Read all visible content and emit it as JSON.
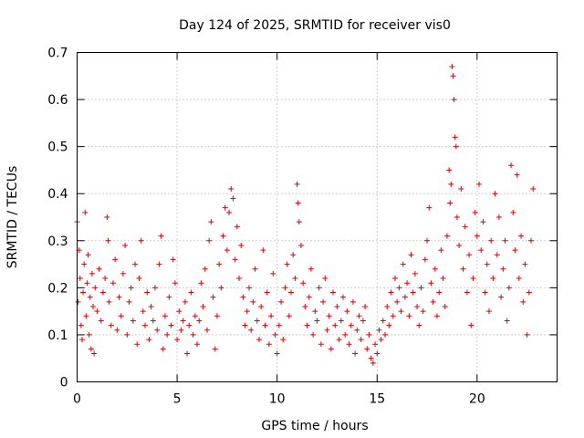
{
  "chart_data": {
    "type": "scatter",
    "title": "Day 124 of 2025, SRMTID for receiver vis0",
    "xlabel": "GPS time / hours",
    "ylabel": "SRMTID / TECUs",
    "xlim": [
      0,
      24
    ],
    "ylim": [
      0,
      0.7
    ],
    "xticks": [
      0,
      5,
      10,
      15,
      20
    ],
    "xtick_labels": [
      "0",
      "5",
      "10",
      "15",
      "20"
    ],
    "yticks": [
      0,
      0.1,
      0.2,
      0.3,
      0.4,
      0.5,
      0.6,
      0.7
    ],
    "ytick_labels": [
      "0",
      "0.1",
      "0.2",
      "0.3",
      "0.4",
      "0.5",
      "0.6",
      "0.7"
    ],
    "grid": true,
    "marker": "+",
    "color": "#e00000",
    "series": [
      {
        "name": "SRMTID",
        "points": [
          [
            0.0,
            0.34
          ],
          [
            0.05,
            0.17
          ],
          [
            0.1,
            0.28
          ],
          [
            0.15,
            0.22
          ],
          [
            0.2,
            0.12
          ],
          [
            0.25,
            0.09
          ],
          [
            0.3,
            0.19
          ],
          [
            0.35,
            0.25
          ],
          [
            0.4,
            0.36
          ],
          [
            0.45,
            0.14
          ],
          [
            0.5,
            0.21
          ],
          [
            0.55,
            0.27
          ],
          [
            0.6,
            0.1
          ],
          [
            0.65,
            0.18
          ],
          [
            0.7,
            0.07
          ],
          [
            0.75,
            0.23
          ],
          [
            0.8,
            0.16
          ],
          [
            0.85,
            0.06
          ],
          [
            0.9,
            0.2
          ],
          [
            1.0,
            0.15
          ],
          [
            1.1,
            0.24
          ],
          [
            1.2,
            0.13
          ],
          [
            1.3,
            0.19
          ],
          [
            1.4,
            0.22
          ],
          [
            1.5,
            0.35
          ],
          [
            1.55,
            0.3
          ],
          [
            1.6,
            0.17
          ],
          [
            1.7,
            0.12
          ],
          [
            1.8,
            0.21
          ],
          [
            1.9,
            0.26
          ],
          [
            2.0,
            0.11
          ],
          [
            2.1,
            0.18
          ],
          [
            2.2,
            0.14
          ],
          [
            2.3,
            0.23
          ],
          [
            2.4,
            0.29
          ],
          [
            2.5,
            0.1
          ],
          [
            2.6,
            0.17
          ],
          [
            2.7,
            0.2
          ],
          [
            2.8,
            0.13
          ],
          [
            2.9,
            0.25
          ],
          [
            3.0,
            0.08
          ],
          [
            3.1,
            0.22
          ],
          [
            3.2,
            0.3
          ],
          [
            3.3,
            0.15
          ],
          [
            3.4,
            0.12
          ],
          [
            3.5,
            0.19
          ],
          [
            3.6,
            0.09
          ],
          [
            3.7,
            0.16
          ],
          [
            3.8,
            0.13
          ],
          [
            3.9,
            0.2
          ],
          [
            4.0,
            0.11
          ],
          [
            4.1,
            0.25
          ],
          [
            4.2,
            0.31
          ],
          [
            4.3,
            0.07
          ],
          [
            4.4,
            0.14
          ],
          [
            4.5,
            0.1
          ],
          [
            4.6,
            0.18
          ],
          [
            4.7,
            0.12
          ],
          [
            4.8,
            0.26
          ],
          [
            4.9,
            0.21
          ],
          [
            5.0,
            0.09
          ],
          [
            5.1,
            0.15
          ],
          [
            5.2,
            0.11
          ],
          [
            5.3,
            0.13
          ],
          [
            5.4,
            0.17
          ],
          [
            5.5,
            0.06
          ],
          [
            5.6,
            0.12
          ],
          [
            5.7,
            0.19
          ],
          [
            5.8,
            0.1
          ],
          [
            5.9,
            0.14
          ],
          [
            6.0,
            0.08
          ],
          [
            6.1,
            0.13
          ],
          [
            6.2,
            0.21
          ],
          [
            6.3,
            0.16
          ],
          [
            6.4,
            0.24
          ],
          [
            6.5,
            0.11
          ],
          [
            6.6,
            0.3
          ],
          [
            6.7,
            0.34
          ],
          [
            6.8,
            0.18
          ],
          [
            6.9,
            0.07
          ],
          [
            7.0,
            0.14
          ],
          [
            7.1,
            0.25
          ],
          [
            7.2,
            0.2
          ],
          [
            7.3,
            0.31
          ],
          [
            7.4,
            0.37
          ],
          [
            7.5,
            0.28
          ],
          [
            7.6,
            0.36
          ],
          [
            7.7,
            0.41
          ],
          [
            7.8,
            0.39
          ],
          [
            7.9,
            0.26
          ],
          [
            8.0,
            0.33
          ],
          [
            8.1,
            0.22
          ],
          [
            8.2,
            0.29
          ],
          [
            8.3,
            0.18
          ],
          [
            8.4,
            0.12
          ],
          [
            8.5,
            0.15
          ],
          [
            8.6,
            0.2
          ],
          [
            8.7,
            0.11
          ],
          [
            8.8,
            0.17
          ],
          [
            8.9,
            0.24
          ],
          [
            9.0,
            0.13
          ],
          [
            9.1,
            0.09
          ],
          [
            9.2,
            0.16
          ],
          [
            9.3,
            0.28
          ],
          [
            9.4,
            0.12
          ],
          [
            9.5,
            0.19
          ],
          [
            9.6,
            0.08
          ],
          [
            9.7,
            0.14
          ],
          [
            9.8,
            0.23
          ],
          [
            9.9,
            0.1
          ],
          [
            10.0,
            0.06
          ],
          [
            10.1,
            0.12
          ],
          [
            10.2,
            0.17
          ],
          [
            10.3,
            0.09
          ],
          [
            10.4,
            0.2
          ],
          [
            10.5,
            0.25
          ],
          [
            10.6,
            0.14
          ],
          [
            10.7,
            0.19
          ],
          [
            10.8,
            0.27
          ],
          [
            10.9,
            0.22
          ],
          [
            11.0,
            0.42
          ],
          [
            11.05,
            0.38
          ],
          [
            11.1,
            0.34
          ],
          [
            11.2,
            0.29
          ],
          [
            11.3,
            0.21
          ],
          [
            11.4,
            0.16
          ],
          [
            11.5,
            0.12
          ],
          [
            11.6,
            0.18
          ],
          [
            11.7,
            0.24
          ],
          [
            11.8,
            0.1
          ],
          [
            11.9,
            0.15
          ],
          [
            12.0,
            0.13
          ],
          [
            12.1,
            0.2
          ],
          [
            12.2,
            0.08
          ],
          [
            12.3,
            0.17
          ],
          [
            12.4,
            0.22
          ],
          [
            12.5,
            0.11
          ],
          [
            12.6,
            0.14
          ],
          [
            12.7,
            0.07
          ],
          [
            12.8,
            0.19
          ],
          [
            12.9,
            0.12
          ],
          [
            13.0,
            0.16
          ],
          [
            13.1,
            0.09
          ],
          [
            13.2,
            0.13
          ],
          [
            13.3,
            0.18
          ],
          [
            13.4,
            0.1
          ],
          [
            13.5,
            0.15
          ],
          [
            13.6,
            0.08
          ],
          [
            13.7,
            0.12
          ],
          [
            13.8,
            0.17
          ],
          [
            13.9,
            0.06
          ],
          [
            14.0,
            0.11
          ],
          [
            14.1,
            0.14
          ],
          [
            14.2,
            0.09
          ],
          [
            14.3,
            0.13
          ],
          [
            14.4,
            0.16
          ],
          [
            14.5,
            0.07
          ],
          [
            14.6,
            0.1
          ],
          [
            14.7,
            0.05
          ],
          [
            14.8,
            0.04
          ],
          [
            14.9,
            0.08
          ],
          [
            15.0,
            0.06
          ],
          [
            15.1,
            0.11
          ],
          [
            15.2,
            0.09
          ],
          [
            15.3,
            0.13
          ],
          [
            15.4,
            0.1
          ],
          [
            15.5,
            0.16
          ],
          [
            15.6,
            0.12
          ],
          [
            15.7,
            0.19
          ],
          [
            15.8,
            0.14
          ],
          [
            15.9,
            0.22
          ],
          [
            16.0,
            0.17
          ],
          [
            16.1,
            0.2
          ],
          [
            16.2,
            0.15
          ],
          [
            16.3,
            0.25
          ],
          [
            16.4,
            0.18
          ],
          [
            16.5,
            0.21
          ],
          [
            16.6,
            0.14
          ],
          [
            16.7,
            0.27
          ],
          [
            16.8,
            0.19
          ],
          [
            16.9,
            0.23
          ],
          [
            17.0,
            0.16
          ],
          [
            17.1,
            0.12
          ],
          [
            17.2,
            0.2
          ],
          [
            17.3,
            0.15
          ],
          [
            17.4,
            0.26
          ],
          [
            17.5,
            0.3
          ],
          [
            17.6,
            0.37
          ],
          [
            17.7,
            0.21
          ],
          [
            17.8,
            0.17
          ],
          [
            17.9,
            0.24
          ],
          [
            18.0,
            0.14
          ],
          [
            18.1,
            0.19
          ],
          [
            18.2,
            0.28
          ],
          [
            18.3,
            0.22
          ],
          [
            18.4,
            0.16
          ],
          [
            18.5,
            0.31
          ],
          [
            18.6,
            0.45
          ],
          [
            18.65,
            0.38
          ],
          [
            18.7,
            0.42
          ],
          [
            18.75,
            0.67
          ],
          [
            18.8,
            0.65
          ],
          [
            18.85,
            0.6
          ],
          [
            18.9,
            0.52
          ],
          [
            18.95,
            0.5
          ],
          [
            19.0,
            0.35
          ],
          [
            19.1,
            0.29
          ],
          [
            19.2,
            0.41
          ],
          [
            19.3,
            0.24
          ],
          [
            19.4,
            0.33
          ],
          [
            19.5,
            0.19
          ],
          [
            19.6,
            0.27
          ],
          [
            19.7,
            0.12
          ],
          [
            19.8,
            0.22
          ],
          [
            19.9,
            0.36
          ],
          [
            20.0,
            0.31
          ],
          [
            20.1,
            0.42
          ],
          [
            20.2,
            0.28
          ],
          [
            20.3,
            0.34
          ],
          [
            20.4,
            0.19
          ],
          [
            20.5,
            0.25
          ],
          [
            20.6,
            0.15
          ],
          [
            20.7,
            0.3
          ],
          [
            20.8,
            0.22
          ],
          [
            20.9,
            0.4
          ],
          [
            21.0,
            0.27
          ],
          [
            21.1,
            0.35
          ],
          [
            21.2,
            0.18
          ],
          [
            21.3,
            0.24
          ],
          [
            21.4,
            0.3
          ],
          [
            21.5,
            0.13
          ],
          [
            21.6,
            0.2
          ],
          [
            21.7,
            0.46
          ],
          [
            21.8,
            0.36
          ],
          [
            21.9,
            0.28
          ],
          [
            22.0,
            0.44
          ],
          [
            22.1,
            0.22
          ],
          [
            22.2,
            0.31
          ],
          [
            22.3,
            0.17
          ],
          [
            22.4,
            0.25
          ],
          [
            22.5,
            0.1
          ],
          [
            22.6,
            0.19
          ],
          [
            22.7,
            0.3
          ],
          [
            22.8,
            0.41
          ]
        ]
      }
    ]
  }
}
